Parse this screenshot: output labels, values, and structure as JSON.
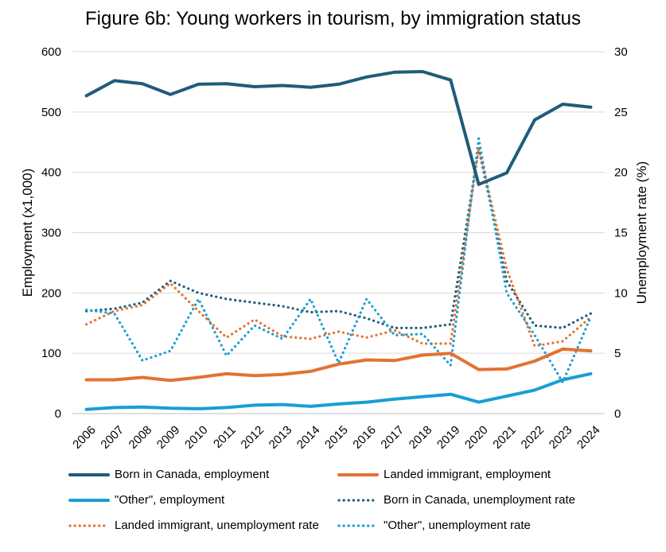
{
  "chart_data": {
    "type": "line",
    "title": "Figure 6b: Young workers in tourism, by immigration status",
    "xlabel": "",
    "ylabel": "Employment (x1,000)",
    "y2label": "Unemployment rate (%)",
    "categories": [
      "2006",
      "2007",
      "2008",
      "2009",
      "2010",
      "2011",
      "2012",
      "2013",
      "2014",
      "2015",
      "2016",
      "2017",
      "2018",
      "2019",
      "2020",
      "2021",
      "2022",
      "2023",
      "2024"
    ],
    "ylim": [
      0,
      600
    ],
    "y2lim": [
      0,
      30
    ],
    "yticks": [
      "0",
      "100",
      "200",
      "300",
      "400",
      "500",
      "600"
    ],
    "y2ticks": [
      "0",
      "5",
      "10",
      "15",
      "20",
      "25",
      "30"
    ],
    "grid": "horizontal",
    "legend_position": "bottom",
    "series": [
      {
        "name": "Born in Canada, employment",
        "axis": "left",
        "style": "solid",
        "color": "#1f5c7a",
        "values": [
          527,
          552,
          547,
          529,
          546,
          547,
          542,
          544,
          541,
          546,
          558,
          566,
          567,
          553,
          380,
          399,
          487,
          513,
          508
        ]
      },
      {
        "name": "Landed immigrant, employment",
        "axis": "left",
        "style": "solid",
        "color": "#e47232",
        "values": [
          56,
          56,
          60,
          55,
          60,
          66,
          63,
          65,
          70,
          82,
          89,
          88,
          97,
          100,
          73,
          74,
          87,
          107,
          104
        ]
      },
      {
        "name": "\"Other\", employment",
        "axis": "left",
        "style": "solid",
        "color": "#1a9ed1",
        "values": [
          7,
          10,
          11,
          9,
          8,
          10,
          14,
          15,
          12,
          16,
          19,
          24,
          28,
          32,
          19,
          29,
          39,
          56,
          66
        ]
      },
      {
        "name": "Born in Canada, unemployment rate",
        "axis": "right",
        "style": "dotted",
        "color": "#1f5c7a",
        "values": [
          8.5,
          8.7,
          9.2,
          11.0,
          10.0,
          9.5,
          9.2,
          8.9,
          8.4,
          8.5,
          7.9,
          7.1,
          7.1,
          7.4,
          22.0,
          11.0,
          7.3,
          7.1,
          8.3
        ]
      },
      {
        "name": "Landed immigrant, unemployment rate",
        "axis": "right",
        "style": "dotted",
        "color": "#e47232",
        "values": [
          7.4,
          8.5,
          9.0,
          10.8,
          8.5,
          6.3,
          7.8,
          6.4,
          6.2,
          6.8,
          6.3,
          6.9,
          5.8,
          5.8,
          22.0,
          12.0,
          5.6,
          6.0,
          8.0
        ]
      },
      {
        "name": "\"Other\", unemployment rate",
        "axis": "right",
        "style": "dotted",
        "color": "#1a9ed1",
        "values": [
          8.6,
          8.3,
          4.4,
          5.2,
          9.5,
          4.8,
          7.3,
          6.2,
          9.5,
          4.2,
          9.5,
          6.5,
          6.6,
          4.0,
          22.8,
          10.0,
          6.5,
          2.6,
          8.0
        ]
      }
    ]
  }
}
